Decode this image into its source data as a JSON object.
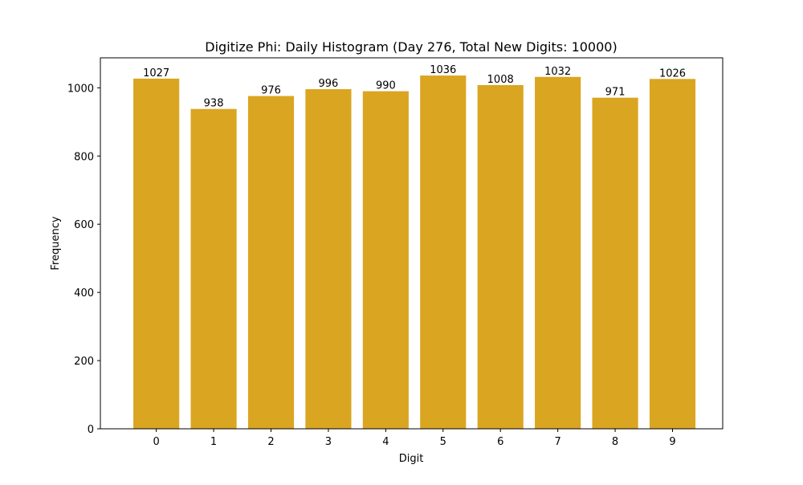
{
  "chart_data": {
    "type": "bar",
    "title": "Digitize Phi: Daily Histogram (Day 276, Total New Digits: 10000)",
    "xlabel": "Digit",
    "ylabel": "Frequency",
    "categories": [
      "0",
      "1",
      "2",
      "3",
      "4",
      "5",
      "6",
      "7",
      "8",
      "9"
    ],
    "values": [
      1027,
      938,
      976,
      996,
      990,
      1036,
      1008,
      1032,
      971,
      1026
    ],
    "data_labels": [
      "1027",
      "938",
      "976",
      "996",
      "990",
      "1036",
      "1008",
      "1032",
      "971",
      "1026"
    ],
    "yticks": [
      0,
      200,
      400,
      600,
      800,
      1000
    ],
    "ylim": [
      0,
      1088
    ],
    "grid": false,
    "legend": null,
    "bar_color": "#DAA520"
  }
}
